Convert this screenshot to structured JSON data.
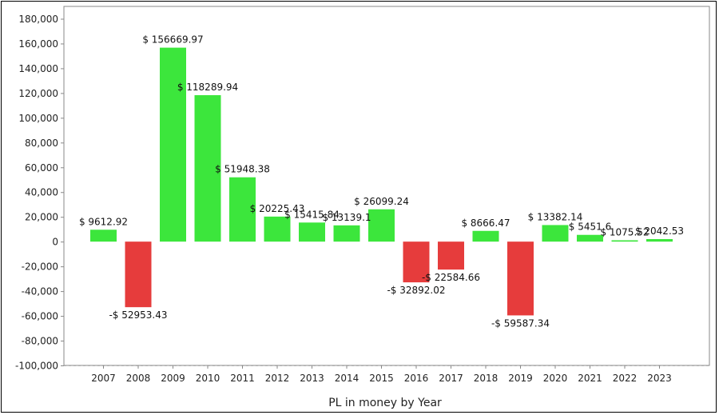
{
  "chart_data": {
    "type": "bar",
    "xlabel": "PL in money by Year",
    "ylabel": "",
    "ylim": [
      -100000,
      190000
    ],
    "yticks": [
      -100000,
      -80000,
      -60000,
      -40000,
      -20000,
      0,
      20000,
      40000,
      60000,
      80000,
      100000,
      120000,
      140000,
      160000,
      180000
    ],
    "ytick_labels": [
      "-100,000",
      "-80,000",
      "-60,000",
      "-40,000",
      "-20,000",
      "0",
      "20,000",
      "40,000",
      "60,000",
      "80,000",
      "100,000",
      "120,000",
      "140,000",
      "160,000",
      "180,000"
    ],
    "categories": [
      "2007",
      "2008",
      "2009",
      "2010",
      "2011",
      "2012",
      "2013",
      "2014",
      "2015",
      "2016",
      "2017",
      "2018",
      "2019",
      "2020",
      "2021",
      "2022",
      "2023"
    ],
    "values": [
      9612.92,
      -52953.43,
      156669.97,
      118289.94,
      51948.38,
      20225.43,
      15415.84,
      13139.1,
      26099.24,
      -32892.02,
      -22584.66,
      8666.47,
      -59587.34,
      13382.14,
      5451.6,
      1075.52,
      2042.53
    ],
    "data_labels": [
      "$ 9612.92",
      "-$ 52953.43",
      "$ 156669.97",
      "$ 118289.94",
      "$ 51948.38",
      "$ 20225.43",
      "$ 15415.84",
      "$ 13139.1",
      "$ 26099.24",
      "-$ 32892.02",
      "-$ 22584.66",
      "$ 8666.47",
      "-$ 59587.34",
      "$ 13382.14",
      "$ 5451.6",
      "$ 1075.52",
      "$ 2042.53"
    ],
    "grid": true,
    "colors": {
      "positive": "#3ce63c",
      "negative": "#e63c3c",
      "grid": "#d9d9d9",
      "axis": "#888888"
    }
  }
}
